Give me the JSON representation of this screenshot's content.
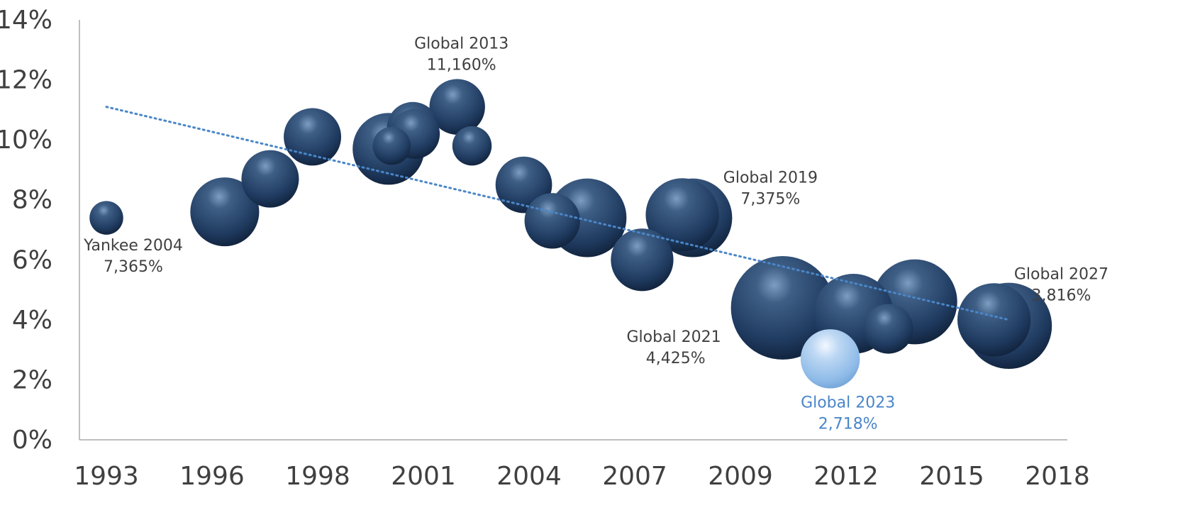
{
  "chart_data": {
    "type": "scatter",
    "subtype": "bubble",
    "title": "",
    "xlabel": "",
    "ylabel": "",
    "x_ticks": [
      "1993",
      "1996",
      "1998",
      "2001",
      "2004",
      "2007",
      "2009",
      "2012",
      "2015",
      "2018"
    ],
    "y_ticks": [
      "0%",
      "2%",
      "4%",
      "6%",
      "8%",
      "10%",
      "12%",
      "14%"
    ],
    "y_unit": "percent",
    "ylim": [
      0,
      14
    ],
    "grid": false,
    "legend": "none",
    "colors": {
      "bubble": "#1f3a5f",
      "highlight_bubble": "#8fbbe8",
      "trendline": "#4a86c8",
      "axis": "#bfbfbf",
      "text": "#404040",
      "highlight_text": "#4a86c8"
    },
    "trendline": {
      "style": "dotted",
      "type": "linear",
      "start_y": 11.1,
      "end_y": 4.0
    },
    "points": [
      {
        "x": 0.0,
        "y": 7.4,
        "size": 0.55,
        "highlight": false
      },
      {
        "x": 1.12,
        "y": 7.6,
        "size": 2.3,
        "highlight": false
      },
      {
        "x": 1.55,
        "y": 8.7,
        "size": 1.6,
        "highlight": false
      },
      {
        "x": 1.95,
        "y": 10.1,
        "size": 1.6,
        "highlight": false
      },
      {
        "x": 2.67,
        "y": 9.7,
        "size": 2.5,
        "highlight": false
      },
      {
        "x": 2.7,
        "y": 9.8,
        "size": 0.7,
        "highlight": false
      },
      {
        "x": 2.9,
        "y": 10.4,
        "size": 1.3,
        "highlight": false
      },
      {
        "x": 2.92,
        "y": 10.2,
        "size": 1.2,
        "highlight": false
      },
      {
        "x": 3.32,
        "y": 11.1,
        "size": 1.5,
        "highlight": false
      },
      {
        "x": 3.46,
        "y": 9.8,
        "size": 0.75,
        "highlight": false
      },
      {
        "x": 3.95,
        "y": 8.5,
        "size": 1.55,
        "highlight": false
      },
      {
        "x": 4.22,
        "y": 7.3,
        "size": 1.5,
        "highlight": false
      },
      {
        "x": 4.55,
        "y": 7.4,
        "size": 3.0,
        "highlight": false
      },
      {
        "x": 5.07,
        "y": 6.0,
        "size": 1.9,
        "highlight": false
      },
      {
        "x": 5.45,
        "y": 7.5,
        "size": 2.6,
        "highlight": false
      },
      {
        "x": 5.55,
        "y": 7.4,
        "size": 3.0,
        "highlight": false
      },
      {
        "x": 6.4,
        "y": 4.4,
        "size": 5.2,
        "highlight": false
      },
      {
        "x": 6.85,
        "y": 2.7,
        "size": 1.7,
        "highlight": true
      },
      {
        "x": 7.07,
        "y": 4.2,
        "size": 3.1,
        "highlight": false
      },
      {
        "x": 7.4,
        "y": 3.7,
        "size": 1.2,
        "highlight": false
      },
      {
        "x": 7.65,
        "y": 4.6,
        "size": 3.5,
        "highlight": false
      },
      {
        "x": 8.4,
        "y": 4.0,
        "size": 2.6,
        "highlight": false
      },
      {
        "x": 8.54,
        "y": 3.8,
        "size": 3.6,
        "highlight": false
      }
    ],
    "annotations": [
      {
        "point": 0,
        "position": "below",
        "text": [
          "Yankee 2004",
          "7,365%"
        ],
        "highlight": false
      },
      {
        "point": 8,
        "position": "above",
        "text": [
          "Global 2013",
          "11,160%"
        ],
        "highlight": false
      },
      {
        "point": 15,
        "position": "upper-right",
        "text": [
          "Global 2019",
          "7,375%"
        ],
        "highlight": false
      },
      {
        "point": 16,
        "position": "lower-left",
        "text": [
          "Global 2021",
          "4,425%"
        ],
        "highlight": false
      },
      {
        "point": 17,
        "position": "below",
        "text": [
          "Global 2023",
          "2,718%"
        ],
        "highlight": true
      },
      {
        "point": 22,
        "position": "upper-right",
        "text": [
          "Global 2027",
          "3,816%"
        ],
        "highlight": false
      }
    ]
  }
}
